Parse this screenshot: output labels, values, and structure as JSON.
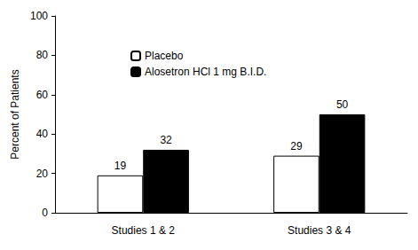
{
  "chart_data": {
    "type": "bar",
    "y_label": "Percent of Patients",
    "categories": [
      "Studies 1 & 2",
      "Studies 3 & 4"
    ],
    "series": [
      {
        "name": "Placebo",
        "color": "#ffffff",
        "values": [
          19,
          29
        ]
      },
      {
        "name": "Alosetron HCl 1 mg B.I.D.",
        "color": "#000000",
        "values": [
          32,
          50
        ]
      }
    ],
    "ylim": [
      0,
      100
    ],
    "yticks": [
      0,
      20,
      40,
      60,
      80,
      100
    ],
    "grid": false,
    "legend": "upper left",
    "data_labels": true
  }
}
